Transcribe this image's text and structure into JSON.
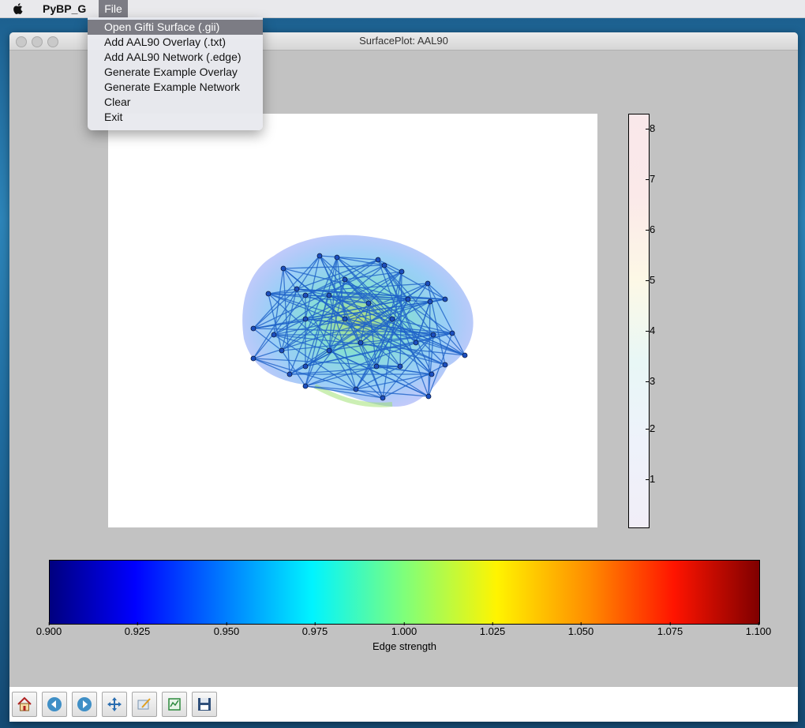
{
  "menubar": {
    "app_name": "PyBP_G",
    "file_menu": "File"
  },
  "file_menu": {
    "items": [
      {
        "label": "Open Gifti Surface (.gii)",
        "highlighted": true
      },
      {
        "label": "Add AAL90 Overlay (.txt)"
      },
      {
        "label": "Add AAL90 Network (.edge)"
      },
      {
        "label": "Generate Example Overlay"
      },
      {
        "label": "Generate Example Network"
      },
      {
        "label": "Clear"
      },
      {
        "label": "Exit"
      }
    ]
  },
  "window": {
    "title": "SurfacePlot: AAL90"
  },
  "chart_data": [
    {
      "type": "heatmap",
      "title": "",
      "orientation": "vertical",
      "ticks": [
        "1",
        "2",
        "3",
        "4",
        "5",
        "6",
        "7",
        "8"
      ],
      "range": [
        0.1,
        8.3
      ]
    },
    {
      "type": "heatmap",
      "orientation": "horizontal",
      "colormap": "jet",
      "ticks": [
        "0.900",
        "0.925",
        "0.950",
        "0.975",
        "1.000",
        "1.025",
        "1.050",
        "1.075",
        "1.100"
      ],
      "xlabel": "Edge strength",
      "range": [
        0.9,
        1.1
      ]
    }
  ],
  "toolbar": {
    "buttons": [
      {
        "icon": "home-icon"
      },
      {
        "icon": "back-icon"
      },
      {
        "icon": "forward-icon"
      },
      {
        "icon": "pan-icon"
      },
      {
        "icon": "zoom-icon"
      },
      {
        "icon": "subplots-icon"
      },
      {
        "icon": "save-icon"
      }
    ]
  }
}
